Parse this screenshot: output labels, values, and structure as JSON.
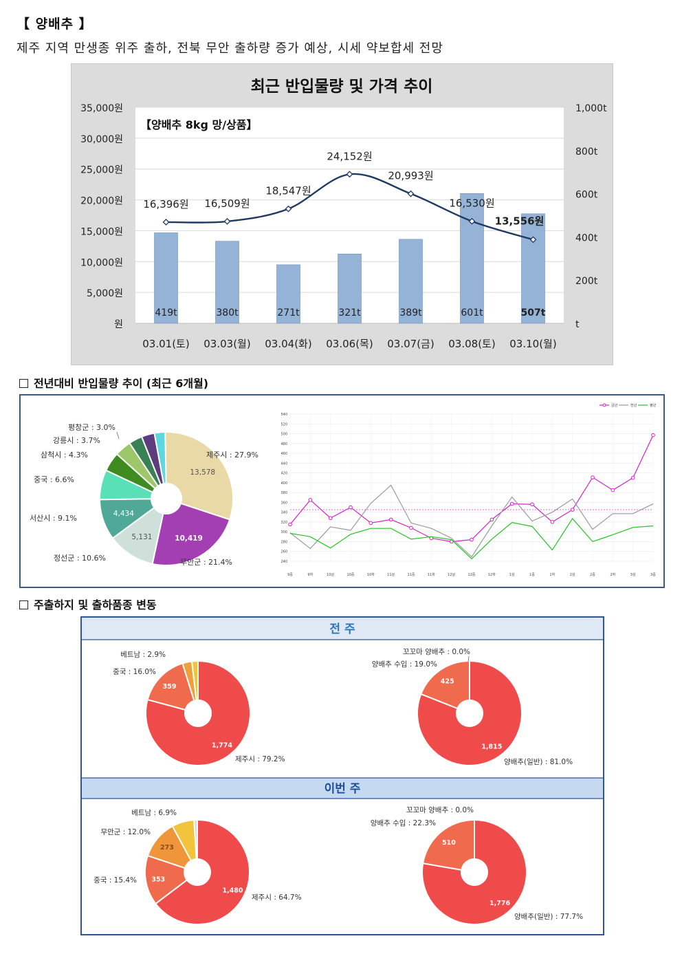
{
  "header": {
    "title": "【 양배추 】",
    "subtitle": "제주 지역 만생종 위주 출하, 전북 무안 출하량 증가 예상, 시세 약보합세 전망"
  },
  "chart_data": [
    {
      "type": "bar",
      "title": "최근 반입물량 및 가격 추이",
      "inner_label": "【양배추 8kg 망/상품】",
      "categories": [
        "03.01(토)",
        "03.03(월)",
        "03.04(화)",
        "03.06(목)",
        "03.07(금)",
        "03.08(토)",
        "03.10(월)"
      ],
      "bar_series": {
        "values": [
          419,
          380,
          271,
          321,
          389,
          601,
          507
        ],
        "labels": [
          "419t",
          "380t",
          "271t",
          "321t",
          "389t",
          "601t",
          "507t"
        ],
        "axis": "right",
        "color": "#95b3d7"
      },
      "line_series": {
        "values": [
          16396,
          16509,
          18547,
          24152,
          20993,
          16530,
          13556
        ],
        "labels": [
          "16,396원",
          "16,509원",
          "18,547원",
          "24,152원",
          "20,993원",
          "16,530원",
          "13,556원"
        ],
        "axis": "left",
        "color": "#1f3864"
      },
      "left_axis": {
        "ylim": [
          0,
          35000
        ],
        "ticks": [
          "원",
          "5,000원",
          "10,000원",
          "15,000원",
          "20,000원",
          "25,000원",
          "30,000원",
          "35,000원"
        ]
      },
      "right_axis": {
        "ylim": [
          0,
          1000
        ],
        "ticks": [
          "t",
          "200t",
          "400t",
          "600t",
          "800t",
          "1,000t"
        ]
      },
      "grid": true,
      "background": "#dcdcdc"
    },
    {
      "type": "pie",
      "section_title": "전년대비 반입물량 추이 (최근 6개월)",
      "slices": [
        {
          "label": "제주시 : 27.9%",
          "value": 27.9,
          "inner": "13,578",
          "color": "#e9d9a6"
        },
        {
          "label": "무안군 : 21.4%",
          "value": 21.4,
          "inner": "10,419",
          "color": "#a33fb3"
        },
        {
          "label": "정선군 : 10.6%",
          "value": 10.6,
          "inner": "5,131",
          "color": "#cfe0da"
        },
        {
          "label": "서산시 : 9.1%",
          "value": 9.1,
          "inner": "4,434",
          "color": "#4fa898"
        },
        {
          "label": "중국 : 6.6%",
          "value": 6.6,
          "inner": "",
          "color": "#5ae0b6"
        },
        {
          "label": "삼척시 : 4.3%",
          "value": 4.3,
          "inner": "",
          "color": "#3e8c1f"
        },
        {
          "label": "강릉시 : 3.7%",
          "value": 3.7,
          "inner": "",
          "color": "#9cc86a"
        },
        {
          "label": "평창군 : 3.0%",
          "value": 3.0,
          "inner": "",
          "color": "#3a8055"
        },
        {
          "label": "",
          "value": 2.9,
          "inner": "",
          "color": "#5d3d7d"
        },
        {
          "label": "",
          "value": 2.4,
          "inner": "",
          "color": "#5dd8e0"
        }
      ]
    },
    {
      "type": "line",
      "categories": [
        "9중",
        "9하",
        "10상",
        "10중",
        "10하",
        "11상",
        "11중",
        "11하",
        "12상",
        "12중",
        "12하",
        "1상",
        "1중",
        "1하",
        "2상",
        "2중",
        "2하",
        "3상",
        "3중"
      ],
      "ylim": [
        240,
        540
      ],
      "yticks": [
        "240",
        "260",
        "280",
        "300",
        "320",
        "340",
        "360",
        "380",
        "400",
        "420",
        "440",
        "460",
        "480",
        "500",
        "520",
        "540"
      ],
      "reference_line": 345,
      "series": [
        {
          "name": "금년",
          "color": "#d81ec8",
          "values": [
            315,
            365,
            328,
            350,
            318,
            325,
            308,
            287,
            280,
            284,
            325,
            357,
            356,
            320,
            345,
            411,
            385,
            410,
            497
          ]
        },
        {
          "name": "전년",
          "color": "#9a9a9a",
          "values": [
            298,
            266,
            310,
            303,
            358,
            395,
            318,
            307,
            287,
            249,
            312,
            371,
            322,
            340,
            367,
            305,
            337,
            337,
            357
          ]
        },
        {
          "name": "평년",
          "color": "#21c321",
          "values": [
            297,
            290,
            267,
            295,
            307,
            307,
            285,
            290,
            284,
            245,
            285,
            319,
            311,
            263,
            327,
            280,
            294,
            309,
            312
          ]
        }
      ]
    },
    {
      "type": "pie",
      "section_title": "주출하지 및 출하품종 변동",
      "panel_title": "전 주",
      "slices": [
        {
          "label": "제주시 : 79.2%",
          "value": 79.2,
          "inner": "1,774",
          "color": "#ef4b4b"
        },
        {
          "label": "중국 : 16.0%",
          "value": 16.0,
          "inner": "359",
          "color": "#f06b4e"
        },
        {
          "label": "베트남 : 2.9%",
          "value": 2.9,
          "inner": "",
          "color": "#f0a03a"
        },
        {
          "label": "",
          "value": 1.9,
          "inner": "",
          "color": "#f2c43b"
        }
      ]
    },
    {
      "type": "pie",
      "panel_title": "전 주",
      "slices": [
        {
          "label": "양배추(일반) : 81.0%",
          "value": 81.0,
          "inner": "1,815",
          "color": "#ef4b4b"
        },
        {
          "label": "양배추 수입 : 19.0%",
          "value": 19.0,
          "inner": "425",
          "color": "#f06b4e"
        },
        {
          "label": "꼬꼬마 양배추 : 0.0%",
          "value": 0.0,
          "inner": "",
          "color": "#f0a03a"
        }
      ]
    },
    {
      "type": "pie",
      "panel_title": "이번 주",
      "slices": [
        {
          "label": "제주시 : 64.7%",
          "value": 64.7,
          "inner": "1,480",
          "color": "#ef4b4b"
        },
        {
          "label": "중국 : 15.4%",
          "value": 15.4,
          "inner": "353",
          "color": "#f06b4e"
        },
        {
          "label": "무안군 : 12.0%",
          "value": 12.0,
          "inner": "273",
          "color": "#f0963a"
        },
        {
          "label": "베트남 : 6.9%",
          "value": 6.9,
          "inner": "",
          "color": "#f2c43b"
        },
        {
          "label": "",
          "value": 1.0,
          "inner": "",
          "color": "#d9d9d9"
        }
      ]
    },
    {
      "type": "pie",
      "panel_title": "이번 주",
      "slices": [
        {
          "label": "양배추(일반) : 77.7%",
          "value": 77.7,
          "inner": "1,776",
          "color": "#ef4b4b"
        },
        {
          "label": "양배추 수입 : 22.3%",
          "value": 22.3,
          "inner": "510",
          "color": "#f06b4e"
        },
        {
          "label": "꼬꼬마 양배추 : 0.0%",
          "value": 0.0,
          "inner": "",
          "color": "#f0a03a"
        }
      ]
    }
  ]
}
